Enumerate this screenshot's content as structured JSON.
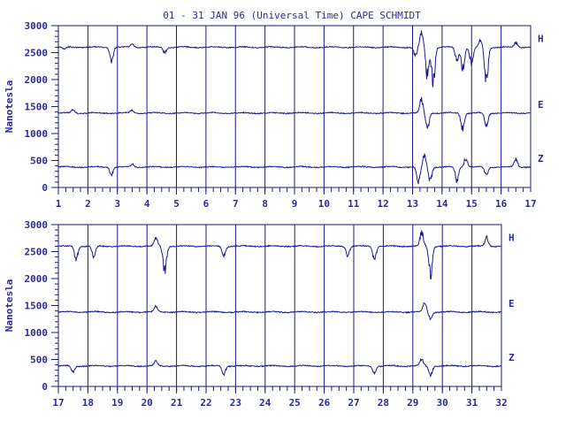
{
  "chart_data": {
    "type": "line",
    "title": "01 - 31 JAN 96 (Universal Time) CAPE SCHMIDT",
    "ylabel": "Nanotesla",
    "colors": {
      "trace": "#1a1a99",
      "frame": "#1a1a88",
      "text": "#2a2a99"
    },
    "panels": [
      {
        "name": "upper",
        "xlim": [
          1,
          17
        ],
        "x_ticks": [
          "1",
          "2",
          "3",
          "4",
          "5",
          "6",
          "7",
          "8",
          "9",
          "10",
          "11",
          "12",
          "13",
          "14",
          "15",
          "16",
          "17"
        ],
        "ylim": [
          0,
          3000
        ],
        "y_ticks": [
          "0",
          "500",
          "1000",
          "1500",
          "2000",
          "2500",
          "3000"
        ],
        "series": [
          {
            "name": "H",
            "baseline": 2600,
            "disturbances": [
              {
                "x": 1.2,
                "dev": -50
              },
              {
                "x": 2.8,
                "dev": -300
              },
              {
                "x": 3.5,
                "dev": 80
              },
              {
                "x": 4.6,
                "dev": -120
              },
              {
                "x": 13.1,
                "dev": -200
              },
              {
                "x": 13.3,
                "dev": 380
              },
              {
                "x": 13.5,
                "dev": -650
              },
              {
                "x": 13.7,
                "dev": -800
              },
              {
                "x": 14.5,
                "dev": -300
              },
              {
                "x": 14.7,
                "dev": -500
              },
              {
                "x": 15.0,
                "dev": -400
              },
              {
                "x": 15.3,
                "dev": 150
              },
              {
                "x": 15.5,
                "dev": -800
              },
              {
                "x": 16.5,
                "dev": 100
              }
            ]
          },
          {
            "name": "E",
            "baseline": 1380,
            "disturbances": [
              {
                "x": 1.5,
                "dev": 80
              },
              {
                "x": 3.5,
                "dev": 70
              },
              {
                "x": 13.3,
                "dev": 300
              },
              {
                "x": 13.5,
                "dev": -350
              },
              {
                "x": 14.7,
                "dev": -370
              },
              {
                "x": 15.5,
                "dev": -300
              }
            ]
          },
          {
            "name": "Z",
            "baseline": 380,
            "disturbances": [
              {
                "x": 2.8,
                "dev": -160
              },
              {
                "x": 3.5,
                "dev": 60
              },
              {
                "x": 13.2,
                "dev": -350
              },
              {
                "x": 13.4,
                "dev": 280
              },
              {
                "x": 13.6,
                "dev": -300
              },
              {
                "x": 14.5,
                "dev": -300
              },
              {
                "x": 14.8,
                "dev": 200
              },
              {
                "x": 15.5,
                "dev": -200
              },
              {
                "x": 16.5,
                "dev": 180
              }
            ]
          }
        ]
      },
      {
        "name": "lower",
        "xlim": [
          17,
          32
        ],
        "x_ticks": [
          "17",
          "18",
          "19",
          "20",
          "21",
          "22",
          "23",
          "24",
          "25",
          "26",
          "27",
          "28",
          "29",
          "30",
          "31",
          "32"
        ],
        "ylim": [
          0,
          3000
        ],
        "y_ticks": [
          "0",
          "500",
          "1000",
          "1500",
          "2000",
          "2500",
          "3000"
        ],
        "series": [
          {
            "name": "H",
            "baseline": 2600,
            "disturbances": [
              {
                "x": 17.6,
                "dev": -300
              },
              {
                "x": 18.2,
                "dev": -250
              },
              {
                "x": 20.3,
                "dev": 180
              },
              {
                "x": 20.6,
                "dev": -580
              },
              {
                "x": 22.6,
                "dev": -200
              },
              {
                "x": 26.8,
                "dev": -200
              },
              {
                "x": 27.7,
                "dev": -300
              },
              {
                "x": 29.3,
                "dev": 300
              },
              {
                "x": 29.6,
                "dev": -650
              },
              {
                "x": 31.5,
                "dev": 200
              }
            ]
          },
          {
            "name": "E",
            "baseline": 1380,
            "disturbances": [
              {
                "x": 20.3,
                "dev": 120
              },
              {
                "x": 29.4,
                "dev": 200
              },
              {
                "x": 29.6,
                "dev": -150
              }
            ]
          },
          {
            "name": "Z",
            "baseline": 380,
            "disturbances": [
              {
                "x": 17.5,
                "dev": -150
              },
              {
                "x": 20.3,
                "dev": 100
              },
              {
                "x": 22.6,
                "dev": -180
              },
              {
                "x": 27.7,
                "dev": -150
              },
              {
                "x": 29.3,
                "dev": 150
              },
              {
                "x": 29.6,
                "dev": -200
              }
            ]
          }
        ]
      }
    ]
  }
}
